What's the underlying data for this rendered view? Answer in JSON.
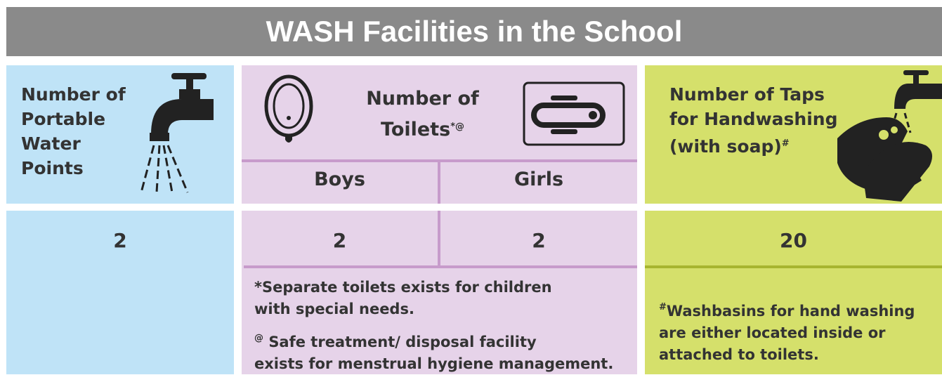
{
  "title": "WASH Facilities in the School",
  "water": {
    "label_lines": [
      "Number of",
      "Portable",
      "Water",
      "Points"
    ],
    "value": "2"
  },
  "toilets": {
    "label_lines": [
      "Number of",
      "Toilets"
    ],
    "label_marks": "*@",
    "boys": {
      "label": "Boys",
      "value": "2"
    },
    "girls": {
      "label": "Girls",
      "value": "2"
    },
    "notes": [
      {
        "mark": "*",
        "lines": [
          "Separate toilets exists for children",
          "with special needs."
        ]
      },
      {
        "mark": "@",
        "lines": [
          "Safe treatment/ disposal facility",
          "exists for menstrual hygiene management."
        ]
      }
    ]
  },
  "taps": {
    "label_lines": [
      "Number of Taps",
      "for Handwashing",
      "(with soap)"
    ],
    "label_marks": "#",
    "value": "20",
    "note": {
      "mark": "#",
      "lines": [
        "Washbasins for hand washing",
        "are either located inside or",
        "attached to toilets."
      ]
    }
  }
}
